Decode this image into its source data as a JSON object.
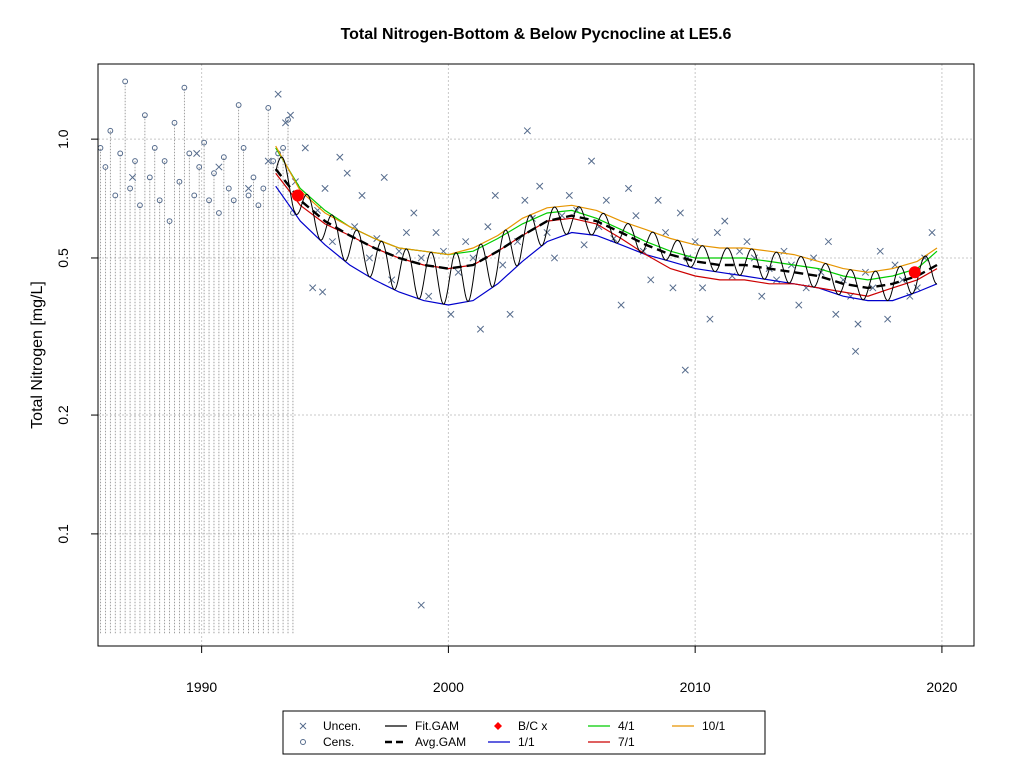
{
  "chart_data": {
    "type": "scatter",
    "title": "Total Nitrogen-Bottom & Below Pycnocline at LE5.6",
    "xlabel": "",
    "ylabel": "Total Nitrogen [mg/L]",
    "xlim": [
      1985.8,
      2021.3
    ],
    "ylim": [
      0.052,
      1.55
    ],
    "y_scale": "log",
    "x_ticks": [
      1990,
      2000,
      2010,
      2020
    ],
    "y_ticks": [
      0.1,
      0.2,
      0.5,
      1.0
    ],
    "y_tick_labels": [
      "0.1",
      "0.2",
      "0.5",
      "1.0"
    ],
    "grid": true,
    "legend_position": "bottom",
    "colors": {
      "points": "#556b8c",
      "fit": "#000000",
      "avg": "#000000",
      "jan1": "#0000cc",
      "apr1": "#00cc00",
      "jul1": "#cc0000",
      "oct1": "#e69500",
      "bc": "#ff0000",
      "grid": "#c8c8c8"
    },
    "legend": [
      {
        "label": "Uncen.",
        "symbol": "x",
        "color": "#556b8c"
      },
      {
        "label": "Cens.",
        "symbol": "o",
        "color": "#556b8c"
      },
      {
        "label": "Fit.GAM",
        "symbol": "line",
        "color": "#000000"
      },
      {
        "label": "Avg.GAM",
        "symbol": "dash",
        "color": "#000000"
      },
      {
        "label": "B/C x",
        "symbol": "diamond",
        "color": "#ff0000"
      },
      {
        "label": "1/1",
        "symbol": "line",
        "color": "#0000cc"
      },
      {
        "label": "4/1",
        "symbol": "line",
        "color": "#00cc00"
      },
      {
        "label": "7/1",
        "symbol": "line",
        "color": "#cc0000"
      },
      {
        "label": "10/1",
        "symbol": "line",
        "color": "#e69500"
      }
    ],
    "avg_gam": {
      "x": [
        1993.0,
        1994.0,
        1995.0,
        1996.0,
        1997.0,
        1998.0,
        1999.0,
        2000.0,
        2001.0,
        2002.0,
        2003.0,
        2004.0,
        2005.0,
        2006.0,
        2007.0,
        2008.0,
        2009.0,
        2010.0,
        2011.0,
        2012.0,
        2013.0,
        2014.0,
        2015.0,
        2016.0,
        2017.0,
        2018.0,
        2019.0,
        2019.8
      ],
      "y": [
        0.84,
        0.7,
        0.62,
        0.57,
        0.53,
        0.5,
        0.48,
        0.47,
        0.48,
        0.52,
        0.57,
        0.62,
        0.64,
        0.62,
        0.58,
        0.54,
        0.51,
        0.49,
        0.48,
        0.48,
        0.47,
        0.46,
        0.45,
        0.43,
        0.42,
        0.43,
        0.45,
        0.48
      ]
    },
    "series_jan1": {
      "x": [
        1993.0,
        1994.0,
        1995.0,
        1996.0,
        1997.0,
        1998.0,
        1999.0,
        2000.0,
        2001.0,
        2002.0,
        2003.0,
        2004.0,
        2005.0,
        2006.0,
        2007.0,
        2008.0,
        2009.0,
        2010.0,
        2011.0,
        2012.0,
        2013.0,
        2014.0,
        2015.0,
        2016.0,
        2017.0,
        2018.0,
        2019.0,
        2019.8
      ],
      "y": [
        0.76,
        0.62,
        0.54,
        0.48,
        0.44,
        0.41,
        0.39,
        0.38,
        0.39,
        0.43,
        0.49,
        0.55,
        0.58,
        0.57,
        0.54,
        0.51,
        0.49,
        0.47,
        0.46,
        0.45,
        0.44,
        0.43,
        0.42,
        0.4,
        0.39,
        0.39,
        0.41,
        0.43
      ]
    },
    "series_apr1": {
      "x": [
        1993.0,
        1994.0,
        1995.0,
        1996.0,
        1997.0,
        1998.0,
        1999.0,
        2000.0,
        2001.0,
        2002.0,
        2003.0,
        2004.0,
        2005.0,
        2006.0,
        2007.0,
        2008.0,
        2009.0,
        2010.0,
        2011.0,
        2012.0,
        2013.0,
        2014.0,
        2015.0,
        2016.0,
        2017.0,
        2018.0,
        2019.0,
        2019.8
      ],
      "y": [
        0.95,
        0.75,
        0.66,
        0.6,
        0.56,
        0.53,
        0.52,
        0.51,
        0.52,
        0.56,
        0.61,
        0.65,
        0.66,
        0.63,
        0.59,
        0.55,
        0.52,
        0.5,
        0.5,
        0.5,
        0.49,
        0.48,
        0.47,
        0.45,
        0.44,
        0.45,
        0.47,
        0.52
      ]
    },
    "series_jul1": {
      "x": [
        1993.0,
        1994.0,
        1995.0,
        1996.0,
        1997.0,
        1998.0,
        1999.0,
        2000.0,
        2001.0,
        2002.0,
        2003.0,
        2004.0,
        2005.0,
        2006.0,
        2007.0,
        2008.0,
        2009.0,
        2010.0,
        2011.0,
        2012.0,
        2013.0,
        2014.0,
        2015.0,
        2016.0,
        2017.0,
        2018.0,
        2019.0,
        2019.8
      ],
      "y": [
        0.82,
        0.68,
        0.61,
        0.57,
        0.53,
        0.5,
        0.48,
        0.47,
        0.48,
        0.52,
        0.57,
        0.62,
        0.63,
        0.61,
        0.56,
        0.51,
        0.47,
        0.45,
        0.44,
        0.44,
        0.43,
        0.43,
        0.42,
        0.41,
        0.4,
        0.42,
        0.44,
        0.47
      ]
    },
    "series_oct1": {
      "x": [
        1993.0,
        1994.0,
        1995.0,
        1996.0,
        1997.0,
        1998.0,
        1999.0,
        2000.0,
        2001.0,
        2002.0,
        2003.0,
        2004.0,
        2005.0,
        2006.0,
        2007.0,
        2008.0,
        2009.0,
        2010.0,
        2011.0,
        2012.0,
        2013.0,
        2014.0,
        2015.0,
        2016.0,
        2017.0,
        2018.0,
        2019.0,
        2019.8
      ],
      "y": [
        0.96,
        0.74,
        0.65,
        0.6,
        0.56,
        0.53,
        0.52,
        0.51,
        0.53,
        0.57,
        0.63,
        0.67,
        0.68,
        0.66,
        0.62,
        0.59,
        0.56,
        0.54,
        0.53,
        0.53,
        0.52,
        0.51,
        0.49,
        0.47,
        0.46,
        0.47,
        0.49,
        0.53
      ]
    },
    "bc_points": {
      "x": [
        1993.9,
        2018.9
      ],
      "y": [
        0.72,
        0.46
      ]
    },
    "uncensored": {
      "x": [
        1987.2,
        1989.8,
        1990.7,
        1991.9,
        1992.7,
        1993.1,
        1993.4,
        1993.6,
        1993.8,
        1994.2,
        1994.5,
        1994.7,
        1995.0,
        1995.3,
        1995.6,
        1995.9,
        1996.2,
        1996.5,
        1996.8,
        1997.1,
        1997.4,
        1997.7,
        1998.0,
        1998.3,
        1998.6,
        1998.9,
        1999.2,
        1999.5,
        1999.8,
        2000.1,
        2000.4,
        2000.7,
        2001.0,
        2001.3,
        2001.6,
        2001.9,
        2002.2,
        2002.5,
        2002.8,
        2003.1,
        2003.4,
        2003.7,
        2004.0,
        2004.3,
        2004.6,
        2004.9,
        2005.2,
        2005.5,
        2005.8,
        2006.1,
        2006.4,
        2006.7,
        2007.0,
        2007.3,
        2007.6,
        2007.9,
        2008.2,
        2008.5,
        2008.8,
        2009.1,
        2009.4,
        2009.7,
        2010.0,
        2010.3,
        2010.6,
        2010.9,
        2011.2,
        2011.5,
        2011.8,
        2012.1,
        2012.4,
        2012.7,
        2013.0,
        2013.3,
        2013.6,
        2013.9,
        2014.2,
        2014.5,
        2014.8,
        2015.1,
        2015.4,
        2015.7,
        2016.0,
        2016.3,
        2016.6,
        2016.9,
        2017.2,
        2017.5,
        2017.8,
        2018.1,
        2018.4,
        2018.7,
        2019.0,
        2019.3,
        2019.6,
        1998.9,
        2009.6,
        2003.2,
        1994.9,
        2016.5
      ],
      "y": [
        0.8,
        0.92,
        0.85,
        0.75,
        0.88,
        1.3,
        1.1,
        1.15,
        0.78,
        0.95,
        0.42,
        0.66,
        0.75,
        0.55,
        0.9,
        0.82,
        0.6,
        0.72,
        0.5,
        0.56,
        0.8,
        0.44,
        0.52,
        0.58,
        0.65,
        0.5,
        0.4,
        0.58,
        0.52,
        0.36,
        0.46,
        0.55,
        0.5,
        0.33,
        0.6,
        0.72,
        0.48,
        0.36,
        0.55,
        0.7,
        0.63,
        0.76,
        0.58,
        0.5,
        0.64,
        0.72,
        0.66,
        0.54,
        0.88,
        0.6,
        0.7,
        0.56,
        0.38,
        0.75,
        0.64,
        0.52,
        0.44,
        0.7,
        0.58,
        0.42,
        0.65,
        0.5,
        0.55,
        0.42,
        0.35,
        0.58,
        0.62,
        0.45,
        0.52,
        0.55,
        0.5,
        0.4,
        0.47,
        0.44,
        0.52,
        0.48,
        0.38,
        0.42,
        0.5,
        0.46,
        0.55,
        0.36,
        0.44,
        0.4,
        0.34,
        0.46,
        0.42,
        0.52,
        0.35,
        0.48,
        0.44,
        0.4,
        0.42,
        0.5,
        0.58,
        0.066,
        0.26,
        1.05,
        0.41,
        0.29
      ]
    },
    "censored": {
      "x": [
        1985.9,
        1986.1,
        1986.3,
        1986.5,
        1986.7,
        1986.9,
        1987.1,
        1987.3,
        1987.5,
        1987.7,
        1987.9,
        1988.1,
        1988.3,
        1988.5,
        1988.7,
        1988.9,
        1989.1,
        1989.3,
        1989.5,
        1989.7,
        1989.9,
        1990.1,
        1990.3,
        1990.5,
        1990.7,
        1990.9,
        1991.1,
        1991.3,
        1991.5,
        1991.7,
        1991.9,
        1992.1,
        1992.3,
        1992.5,
        1992.7,
        1992.9,
        1993.1,
        1993.3,
        1993.5,
        1993.7
      ],
      "y": [
        0.95,
        0.85,
        1.05,
        0.72,
        0.92,
        1.4,
        0.75,
        0.88,
        0.68,
        1.15,
        0.8,
        0.95,
        0.7,
        0.88,
        0.62,
        1.1,
        0.78,
        1.35,
        0.92,
        0.72,
        0.85,
        0.98,
        0.7,
        0.82,
        0.65,
        0.9,
        0.75,
        0.7,
        1.22,
        0.95,
        0.72,
        0.8,
        0.68,
        0.75,
        1.2,
        0.88,
        0.92,
        0.95,
        1.12,
        0.65
      ]
    },
    "censored_floor_y": 0.056
  }
}
